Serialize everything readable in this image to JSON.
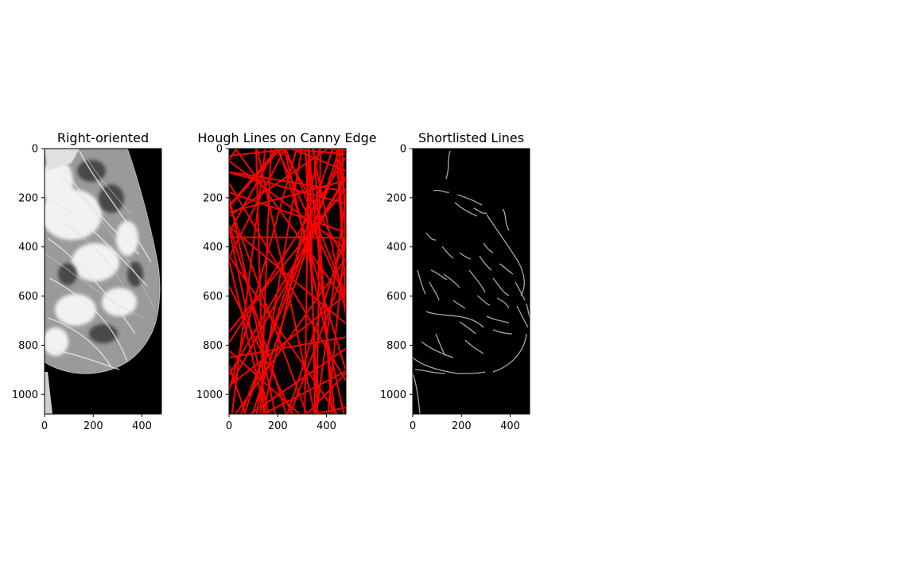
{
  "figure": {
    "background": "#ffffff",
    "panels": [
      {
        "id": "right-oriented",
        "title": "Right-oriented",
        "content": "grayscale mammogram (right-oriented breast tissue)",
        "x_ticks": [
          0,
          200,
          400
        ],
        "y_ticks": [
          0,
          200,
          400,
          600,
          800,
          1000
        ],
        "x_range": [
          0,
          480
        ],
        "y_range": [
          0,
          1080
        ]
      },
      {
        "id": "hough-lines",
        "title": "Hough Lines on Canny Edge",
        "content": "many red straight Hough lines over black background",
        "line_color": "#ff0000",
        "x_ticks": [
          0,
          200,
          400
        ],
        "y_ticks": [
          0,
          200,
          400,
          600,
          800,
          1000
        ],
        "x_range": [
          0,
          480
        ],
        "y_range": [
          0,
          1080
        ]
      },
      {
        "id": "shortlisted-lines",
        "title": "Shortlisted Lines",
        "content": "thin gray curved edge lines over black background",
        "line_color": "#a8a8a8",
        "x_ticks": [
          0,
          200,
          400
        ],
        "y_ticks": [
          0,
          200,
          400,
          600,
          800,
          1000
        ],
        "x_range": [
          0,
          480
        ],
        "y_range": [
          0,
          1080
        ]
      }
    ]
  }
}
